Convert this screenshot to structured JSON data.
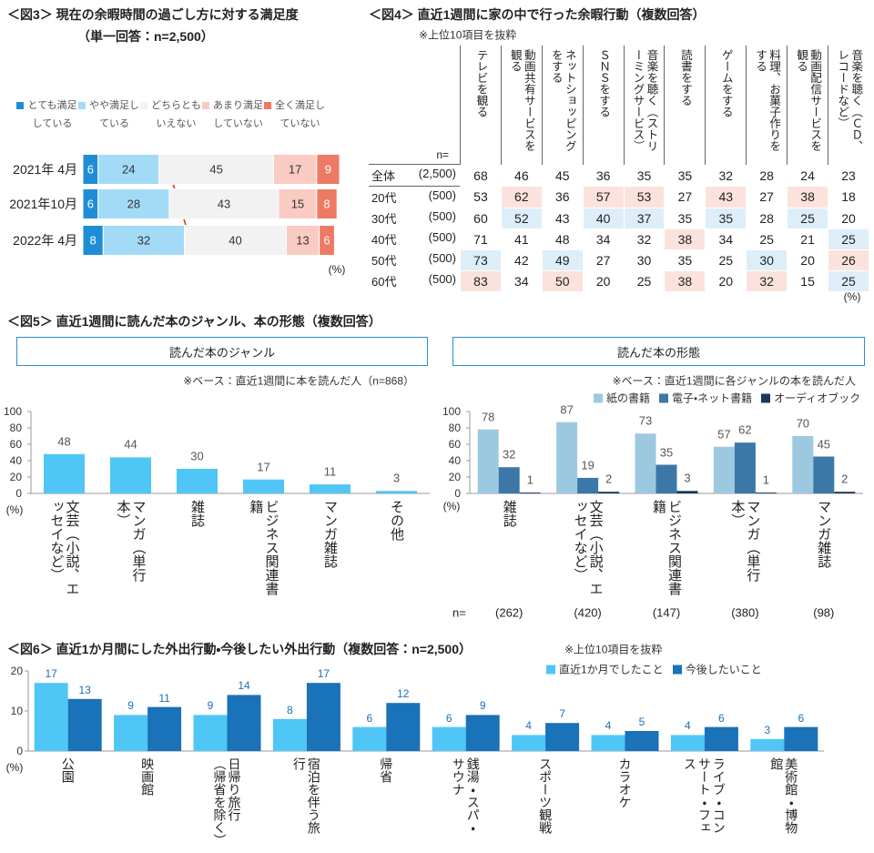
{
  "chart_data": [
    {
      "type": "barh",
      "stacked": true,
      "title": "＜図3＞ 現在の余暇時間の過ごし方に対する満足度",
      "subtitle": "（単一回答：n=2,500）",
      "unit": "(%)",
      "categories": [
        "2021年 4月",
        "2021年10月",
        "2022年 4月"
      ],
      "xlim": [
        0,
        101
      ],
      "series": [
        {
          "name": "とても満足している",
          "color": "#1f8dd6",
          "label_color": "#ffffff",
          "values": [
            6,
            6,
            8
          ]
        },
        {
          "name": "やや満足している",
          "color": "#a3dbf7",
          "label_color": "#333333",
          "values": [
            24,
            28,
            32
          ]
        },
        {
          "name": "どちらともいえない",
          "color": "#f2f2f2",
          "label_color": "#333333",
          "values": [
            45,
            43,
            40
          ]
        },
        {
          "name": "あまり満足していない",
          "color": "#f9cbc3",
          "label_color": "#333333",
          "values": [
            17,
            15,
            13
          ]
        },
        {
          "name": "全く満足していない",
          "color": "#ee7a63",
          "label_color": "#ffffff",
          "values": [
            9,
            8,
            6
          ]
        }
      ]
    },
    {
      "type": "table",
      "title": "＜図4＞ 直近1週間に家の中で行った余暇行動（複数回答）",
      "note": "※上位10項目を抜粋",
      "n_label": "n=",
      "unit": "(%)",
      "highlight_colors": {
        "high": "#fce2dc",
        "low": "#ddeef9"
      },
      "columns": [
        "テレビを観る",
        "動画共有サービスを観る",
        "ネットショッピングをする",
        "ＳＮＳをする",
        "音楽を聴く（ストリーミングサービス）",
        "読書をする",
        "ゲームをする",
        "料理、お菓子作りをする",
        "動画配信サービスを観る",
        "音楽を聴く（ＣＤ、レコードなど）"
      ],
      "rows": [
        {
          "label": "全体",
          "n": "(2,500)",
          "values": [
            68,
            46,
            45,
            36,
            35,
            35,
            32,
            28,
            24,
            23
          ],
          "highlight": [
            null,
            null,
            null,
            null,
            null,
            null,
            null,
            null,
            null,
            null
          ]
        },
        {
          "label": "20代",
          "n": "(500)",
          "values": [
            53,
            62,
            36,
            57,
            53,
            27,
            43,
            27,
            38,
            18
          ],
          "highlight": [
            null,
            "high",
            null,
            "high",
            "high",
            null,
            "high",
            null,
            "high",
            null
          ]
        },
        {
          "label": "30代",
          "n": "(500)",
          "values": [
            60,
            52,
            43,
            40,
            37,
            35,
            35,
            28,
            25,
            20
          ],
          "highlight": [
            null,
            "low",
            null,
            "low",
            "low",
            null,
            "low",
            null,
            "low",
            null
          ]
        },
        {
          "label": "40代",
          "n": "(500)",
          "values": [
            71,
            41,
            48,
            34,
            32,
            38,
            34,
            25,
            21,
            25
          ],
          "highlight": [
            null,
            null,
            null,
            null,
            null,
            "high",
            null,
            null,
            null,
            "low"
          ]
        },
        {
          "label": "50代",
          "n": "(500)",
          "values": [
            73,
            42,
            49,
            27,
            30,
            35,
            25,
            30,
            20,
            26
          ],
          "highlight": [
            "low",
            null,
            "low",
            null,
            null,
            null,
            null,
            "low",
            null,
            "high"
          ]
        },
        {
          "label": "60代",
          "n": "(500)",
          "values": [
            83,
            34,
            50,
            20,
            25,
            38,
            20,
            32,
            15,
            25
          ],
          "highlight": [
            "high",
            null,
            "high",
            null,
            null,
            "high",
            null,
            "high",
            null,
            "low"
          ]
        }
      ]
    },
    {
      "type": "bar",
      "title": "＜図5＞ 直近1週間に読んだ本のジャンル、本の形態（複数回答）",
      "subtitle": "読んだ本のジャンル",
      "note": "※ベース：直近1週間に本を読んだ人（n=868）",
      "unit": "(%)",
      "categories": [
        "文芸（小説、エッセイなど）",
        "マンガ（単行本）",
        "雑誌",
        "ビジネス関連書籍",
        "マンガ雑誌",
        "その他"
      ],
      "values": [
        48,
        44,
        30,
        17,
        11,
        3
      ],
      "color": "#4fc6f5",
      "label_color": "#555555",
      "ylim": [
        0,
        100
      ],
      "yticks": [
        0,
        20,
        40,
        60,
        80,
        100
      ]
    },
    {
      "type": "bar",
      "subtitle": "読んだ本の形態",
      "note": "※ベース：直近1週間に各ジャンルの本を読んだ人",
      "unit": "(%)",
      "categories": [
        "雑誌",
        "文芸（小説、エッセイなど）",
        "ビジネス関連書籍",
        "マンガ（単行本）",
        "マンガ雑誌"
      ],
      "series": [
        {
          "name": "紙の書籍",
          "color": "#9dc9e0",
          "values": [
            78,
            87,
            73,
            57,
            70
          ]
        },
        {
          "name": "電子・ネット書籍",
          "color": "#3b78a8",
          "values": [
            32,
            19,
            35,
            62,
            45
          ]
        },
        {
          "name": "オーディオブック",
          "color": "#1c3858",
          "values": [
            1,
            2,
            3,
            1,
            2
          ]
        }
      ],
      "label_color": "#555555",
      "n_label": "n=",
      "n_values": [
        "(262)",
        "(420)",
        "(147)",
        "(380)",
        "(98)"
      ],
      "ylim": [
        0,
        100
      ],
      "yticks": [
        0,
        20,
        40,
        60,
        80,
        100
      ]
    },
    {
      "type": "bar",
      "title": "＜図6＞ 直近1か月間にした外出行動・今後したい外出行動（複数回答：n=2,500）",
      "note": "※上位10項目を抜粋",
      "unit": "(%)",
      "categories": [
        "公園",
        "映画館",
        "日帰り旅行（帰省を除く）",
        "宿泊を伴う旅行",
        "帰省",
        "銭湯・スパ・サウナ",
        "スポーツ観戦",
        "カラオケ",
        "ライブ・コンサート・フェス",
        "美術館・博物館"
      ],
      "series": [
        {
          "name": "直近1か月でしたこと",
          "color": "#4fc6f5",
          "values": [
            17,
            9,
            9,
            8,
            6,
            6,
            4,
            4,
            4,
            3
          ]
        },
        {
          "name": "今後したいこと",
          "color": "#1a72b8",
          "values": [
            13,
            11,
            14,
            17,
            12,
            9,
            7,
            5,
            6,
            6
          ]
        }
      ],
      "label_color": "#1f6fb5",
      "ylim": [
        0,
        20
      ],
      "yticks": [
        0,
        10,
        20
      ]
    }
  ]
}
